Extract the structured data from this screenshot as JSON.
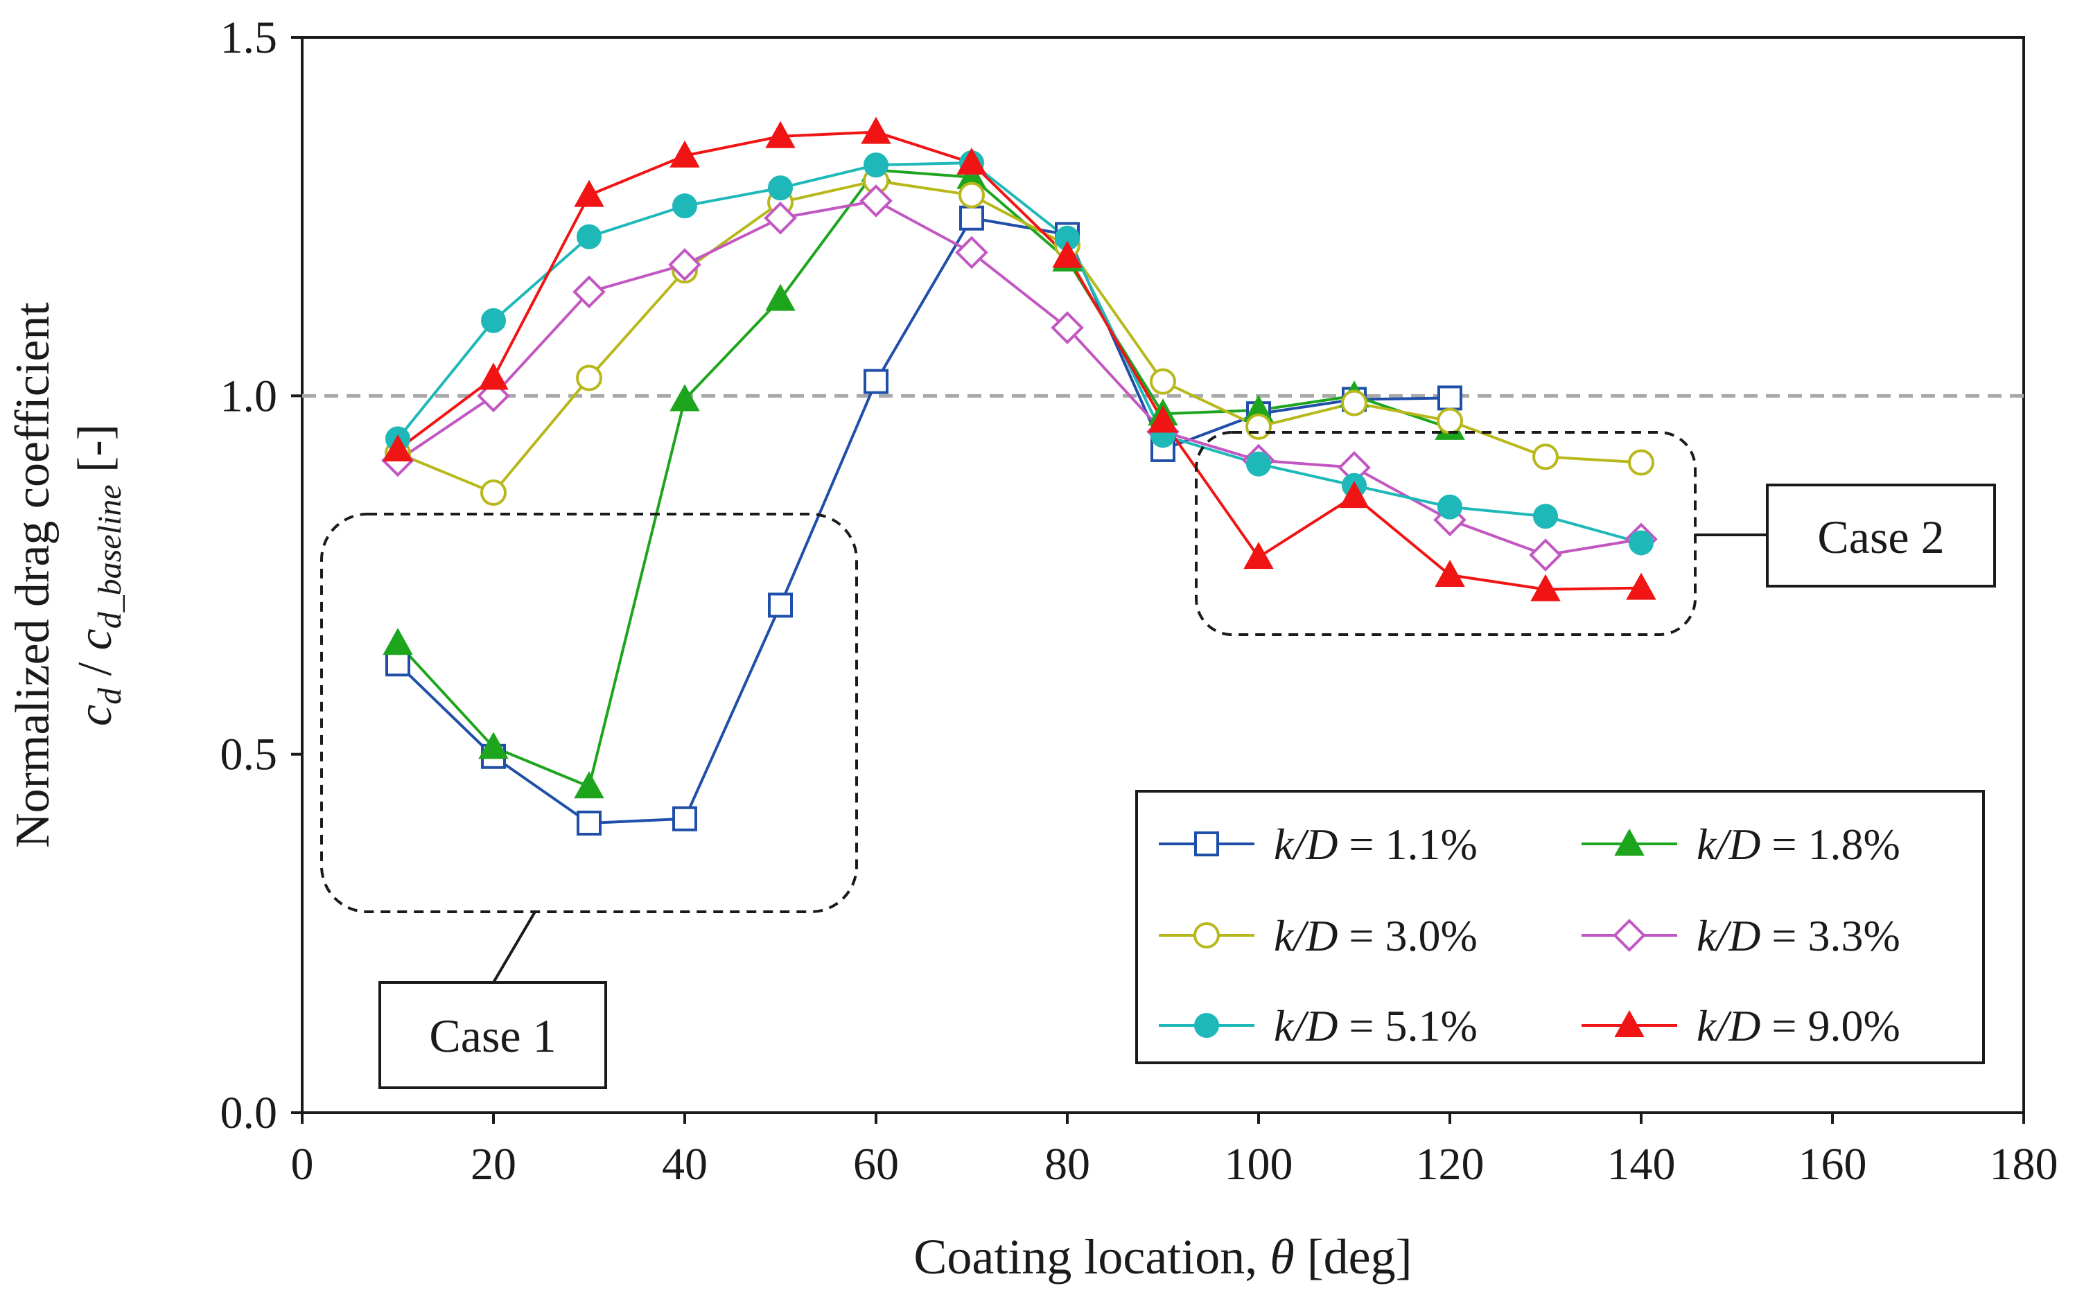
{
  "chart_data": {
    "type": "line",
    "xlabel_prefix": "Coating location,",
    "xlabel_symbol": "θ",
    "xlabel_suffix": "[deg]",
    "ylabel_line1": "Normalized drag coefficient",
    "ylabel_c1": "c",
    "ylabel_sub1": "d",
    "ylabel_slash": " / ",
    "ylabel_c2": "c",
    "ylabel_sub2": "d_baseline",
    "ylabel_unit": " [-]",
    "xlim": [
      0,
      180
    ],
    "ylim": [
      0,
      1.5
    ],
    "xticks": [
      "0",
      "20",
      "40",
      "60",
      "80",
      "100",
      "120",
      "140",
      "160",
      "180"
    ],
    "yticks": [
      "0.0",
      "0.5",
      "1.0",
      "1.5"
    ],
    "baseline": 1.0,
    "legend_prefix": "k/D",
    "series": [
      {
        "name": "1.1%",
        "color": "#1f4fa8",
        "marker": "square-open",
        "x": [
          10,
          20,
          30,
          40,
          50,
          60,
          70,
          80,
          90,
          100,
          110,
          120
        ],
        "y": [
          0.626,
          0.497,
          0.404,
          0.41,
          0.708,
          1.02,
          1.248,
          1.225,
          0.925,
          0.975,
          0.995,
          0.997
        ]
      },
      {
        "name": "1.8%",
        "color": "#1ea51e",
        "marker": "triangle-filled",
        "x": [
          10,
          20,
          30,
          40,
          50,
          60,
          70,
          80,
          90,
          100,
          110,
          120
        ],
        "y": [
          0.655,
          0.51,
          0.455,
          0.995,
          1.135,
          1.315,
          1.305,
          1.19,
          0.975,
          0.98,
          1.0,
          0.955
        ]
      },
      {
        "name": "3.0%",
        "color": "#b8b81c",
        "marker": "circle-open",
        "x": [
          10,
          20,
          30,
          40,
          50,
          60,
          70,
          80,
          90,
          100,
          110,
          120,
          130,
          140
        ],
        "y": [
          0.92,
          0.865,
          1.025,
          1.175,
          1.27,
          1.3,
          1.28,
          1.21,
          1.02,
          0.957,
          0.99,
          0.965,
          0.915,
          0.907
        ]
      },
      {
        "name": "3.3%",
        "color": "#c257c2",
        "marker": "diamond-open",
        "x": [
          10,
          20,
          30,
          40,
          50,
          60,
          70,
          80,
          90,
          100,
          110,
          120,
          130,
          140
        ],
        "y": [
          0.91,
          1.0,
          1.145,
          1.183,
          1.248,
          1.272,
          1.2,
          1.095,
          0.95,
          0.91,
          0.9,
          0.827,
          0.778,
          0.8
        ]
      },
      {
        "name": "5.1%",
        "color": "#1fb8b8",
        "marker": "circle-filled",
        "x": [
          10,
          20,
          30,
          40,
          50,
          60,
          70,
          80,
          90,
          100,
          110,
          120,
          130,
          140
        ],
        "y": [
          0.94,
          1.105,
          1.222,
          1.265,
          1.29,
          1.322,
          1.325,
          1.22,
          0.945,
          0.905,
          0.875,
          0.845,
          0.832,
          0.795
        ]
      },
      {
        "name": "9.0%",
        "color": "#f01414",
        "marker": "triangle-filled",
        "x": [
          10,
          20,
          30,
          40,
          50,
          60,
          70,
          80,
          90,
          100,
          110,
          120,
          130,
          140
        ],
        "y": [
          0.925,
          1.025,
          1.28,
          1.335,
          1.362,
          1.368,
          1.325,
          1.195,
          0.965,
          0.775,
          0.86,
          0.75,
          0.73,
          0.732
        ]
      }
    ],
    "annotations": [
      {
        "label": "Case 1"
      },
      {
        "label": "Case 2"
      }
    ]
  }
}
